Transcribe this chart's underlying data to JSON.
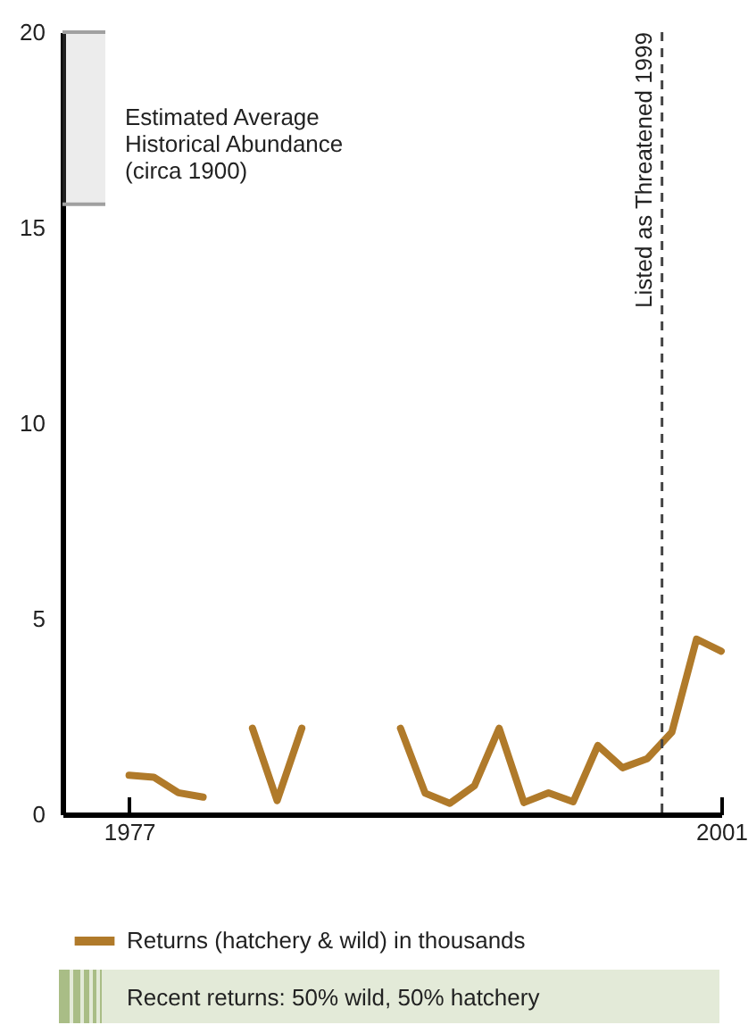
{
  "chart_data": {
    "type": "line",
    "x": [
      1977,
      1978,
      1979,
      1980,
      1981,
      1982,
      1983,
      1984,
      1985,
      1986,
      1987,
      1988,
      1989,
      1990,
      1991,
      1992,
      1993,
      1994,
      1995,
      1996,
      1997,
      1998,
      1999,
      2000,
      2001
    ],
    "series": [
      {
        "name": "Returns (hatchery & wild) in thousands",
        "color": "#b07a2a",
        "values": [
          1.0,
          0.95,
          0.55,
          0.44,
          null,
          2.2,
          0.35,
          2.2,
          null,
          null,
          null,
          2.2,
          0.54,
          0.28,
          0.73,
          2.2,
          0.3,
          0.55,
          0.32,
          1.76,
          1.19,
          1.42,
          2.1,
          4.48,
          4.17
        ]
      }
    ],
    "xlim": [
      1974.3,
      2001
    ],
    "xticks": [
      1977,
      2001
    ],
    "ylim": [
      0,
      20
    ],
    "yticks": [
      0,
      5,
      10,
      15,
      20
    ],
    "ref_lines": [
      {
        "axis": "x",
        "value": 1998.6,
        "label": "Listed as Threatened 1999",
        "color": "#444444",
        "line_style": "dashed"
      }
    ],
    "bands": [
      {
        "axis": "y",
        "from": 15.6,
        "to": 20,
        "label": "Estimated Average Historical Abundance (circa 1900)",
        "color": "#a0a0a0"
      }
    ],
    "annotations": [
      "Recent returns:  50% wild, 50% hatchery"
    ],
    "legend": "bottom",
    "grid": false
  }
}
